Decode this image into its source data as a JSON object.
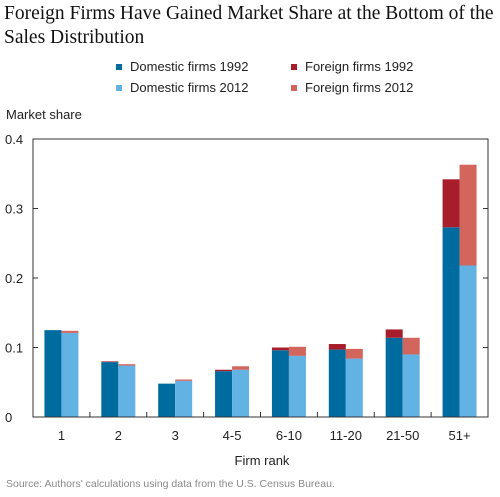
{
  "chart_data": {
    "type": "bar",
    "title": "Foreign Firms Have Gained Market Share at the Bottom of the Sales Distribution",
    "ylabel": "Market share",
    "xlabel": "Firm rank",
    "ylim": [
      0,
      0.4
    ],
    "yticks": [
      "0",
      "0.1",
      "0.2",
      "0.3",
      "0.4"
    ],
    "categories": [
      "1",
      "2",
      "3",
      "4-5",
      "6-10",
      "11-20",
      "21-50",
      "51+"
    ],
    "stacked_pairs": [
      {
        "year": "1992",
        "domain_name": "Domestic firms 1992",
        "foreign_name": "Foreign firms 1992",
        "domestic": [
          0.125,
          0.079,
          0.048,
          0.066,
          0.096,
          0.097,
          0.114,
          0.273
        ],
        "foreign": [
          0.0,
          0.001,
          0.0,
          0.002,
          0.004,
          0.008,
          0.012,
          0.069
        ]
      },
      {
        "year": "2012",
        "domain_name": "Domestic firms 2012",
        "foreign_name": "Foreign firms 2012",
        "domestic": [
          0.121,
          0.074,
          0.052,
          0.068,
          0.088,
          0.084,
          0.09,
          0.218
        ],
        "foreign": [
          0.003,
          0.002,
          0.002,
          0.005,
          0.013,
          0.014,
          0.024,
          0.145
        ]
      }
    ],
    "legend": [
      {
        "label": "Domestic firms 1992",
        "color": "#006b9f"
      },
      {
        "label": "Foreign firms 1992",
        "color": "#a81d2c"
      },
      {
        "label": "Domestic firms 2012",
        "color": "#62b2e4"
      },
      {
        "label": "Foreign firms 2012",
        "color": "#d2655c"
      }
    ],
    "colors": {
      "domestic_1992": "#006b9f",
      "domestic_2012": "#62b2e4",
      "foreign_1992": "#a81d2c",
      "foreign_2012": "#d2655c"
    },
    "legend_position": "top-center",
    "grid": false
  },
  "source": "Source: Authors' calculations using data from the U.S. Census Bureau."
}
